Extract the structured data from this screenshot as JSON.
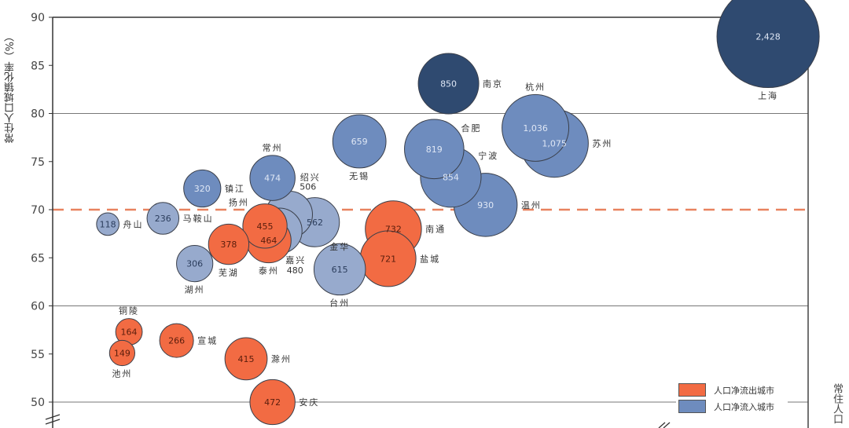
{
  "chart_data": {
    "type": "scatter",
    "subtype": "bubble",
    "title": "",
    "ylabel": "常住人口城镇化率（%）",
    "xlabel": "常住人口",
    "x_note": "x axis unlabeled; x values are relative positions on an unlabeled 0-100 scale",
    "xlim": [
      0,
      100
    ],
    "ylim": [
      50,
      90
    ],
    "yticks": [
      50,
      55,
      60,
      65,
      70,
      75,
      80,
      85,
      90
    ],
    "gridlines": [
      50,
      60,
      80
    ],
    "reference_line": {
      "y": 70,
      "style": "dashed",
      "color": "#E8825F"
    },
    "legend": {
      "placement": "bottom-right",
      "entries": [
        {
          "name": "人口净流出城市",
          "color": "#F26B43"
        },
        {
          "name": "人口净流入城市",
          "color": "#6E8CBE"
        }
      ]
    },
    "colors": {
      "outflow": "#F26B43",
      "inflow": "#6E8CBE",
      "inflow_light": "#97AACD",
      "core": "#2F4A70"
    },
    "points": [
      {
        "city": "上海",
        "x": 94.7,
        "y": 88.0,
        "size": 2428,
        "size_label": "2,428",
        "group": "core",
        "label_pos": "below"
      },
      {
        "city": "苏州",
        "x": 66.4,
        "y": 76.9,
        "size": 1075,
        "size_label": "1,075",
        "group": "inflow",
        "label_pos": "right"
      },
      {
        "city": "杭州",
        "x": 63.9,
        "y": 78.5,
        "size": 1036,
        "size_label": "1,036",
        "group": "inflow",
        "label_pos": "above"
      },
      {
        "city": "温州",
        "x": 57.3,
        "y": 70.5,
        "size": 930,
        "size_label": "930",
        "group": "inflow",
        "label_pos": "right"
      },
      {
        "city": "宁波",
        "x": 52.7,
        "y": 73.4,
        "size": 854,
        "size_label": "854",
        "group": "inflow",
        "label_pos": "upright"
      },
      {
        "city": "南京",
        "x": 52.4,
        "y": 83.1,
        "size": 850,
        "size_label": "850",
        "group": "core",
        "label_pos": "right"
      },
      {
        "city": "合肥",
        "x": 50.5,
        "y": 76.3,
        "size": 819,
        "size_label": "819",
        "group": "inflow",
        "label_pos": "upright"
      },
      {
        "city": "南通",
        "x": 45.1,
        "y": 68.0,
        "size": 732,
        "size_label": "732",
        "group": "outflow",
        "label_pos": "right"
      },
      {
        "city": "盐城",
        "x": 44.4,
        "y": 64.9,
        "size": 721,
        "size_label": "721",
        "group": "outflow",
        "label_pos": "right"
      },
      {
        "city": "无锡",
        "x": 40.6,
        "y": 77.1,
        "size": 659,
        "size_label": "659",
        "group": "inflow",
        "label_pos": "below"
      },
      {
        "city": "台州",
        "x": 38.0,
        "y": 63.8,
        "size": 615,
        "size_label": "615",
        "group": "inflow_light",
        "label_pos": "below"
      },
      {
        "city": "金华",
        "x": 34.7,
        "y": 68.7,
        "size": 562,
        "size_label": "562",
        "group": "inflow_light",
        "label_pos": "downright"
      },
      {
        "city": "绍兴",
        "x": 31.3,
        "y": 69.5,
        "size": 506,
        "size_label": "506",
        "group": "inflow_light",
        "label_pos": "topright-outside"
      },
      {
        "city": "嘉兴",
        "x": 30.0,
        "y": 67.8,
        "size": 480,
        "size_label": "480",
        "group": "inflow_light",
        "label_pos": "bottomright-outside"
      },
      {
        "city": "常州",
        "x": 29.1,
        "y": 73.3,
        "size": 474,
        "size_label": "474",
        "group": "inflow",
        "label_pos": "above"
      },
      {
        "city": "安庆",
        "x": 29.1,
        "y": 50.0,
        "size": 472,
        "size_label": "472",
        "group": "outflow",
        "label_pos": "right"
      },
      {
        "city": "泰州",
        "x": 28.6,
        "y": 66.8,
        "size": 464,
        "size_label": "464",
        "group": "outflow",
        "label_pos": "below"
      },
      {
        "city": "扬州",
        "x": 28.1,
        "y": 68.3,
        "size": 455,
        "size_label": "455",
        "group": "outflow",
        "label_pos": "upleft"
      },
      {
        "city": "滁州",
        "x": 25.6,
        "y": 54.5,
        "size": 415,
        "size_label": "415",
        "group": "outflow",
        "label_pos": "right"
      },
      {
        "city": "芜湖",
        "x": 23.3,
        "y": 66.4,
        "size": 378,
        "size_label": "378",
        "group": "outflow",
        "label_pos": "below"
      },
      {
        "city": "镇江",
        "x": 19.8,
        "y": 72.2,
        "size": 320,
        "size_label": "320",
        "group": "inflow",
        "label_pos": "right"
      },
      {
        "city": "湖州",
        "x": 18.8,
        "y": 64.4,
        "size": 306,
        "size_label": "306",
        "group": "inflow_light",
        "label_pos": "below"
      },
      {
        "city": "宣城",
        "x": 16.4,
        "y": 56.4,
        "size": 266,
        "size_label": "266",
        "group": "outflow",
        "label_pos": "right"
      },
      {
        "city": "马鞍山",
        "x": 14.6,
        "y": 69.1,
        "size": 236,
        "size_label": "236",
        "group": "inflow_light",
        "label_pos": "right"
      },
      {
        "city": "铜陵",
        "x": 10.1,
        "y": 57.3,
        "size": 164,
        "size_label": "164",
        "group": "outflow",
        "label_pos": "above"
      },
      {
        "city": "池州",
        "x": 9.2,
        "y": 55.1,
        "size": 149,
        "size_label": "149",
        "group": "outflow",
        "label_pos": "below"
      },
      {
        "city": "舟山",
        "x": 7.3,
        "y": 68.5,
        "size": 118,
        "size_label": "118",
        "group": "inflow_light",
        "label_pos": "right"
      }
    ]
  }
}
